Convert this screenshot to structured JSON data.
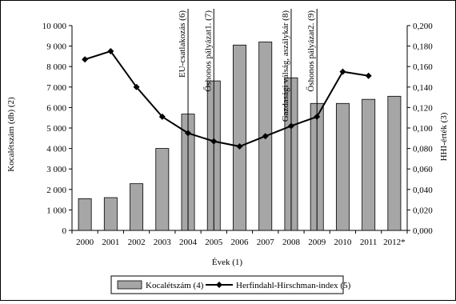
{
  "chart_data": {
    "type": "bar+line",
    "categories": [
      "2000",
      "2001",
      "2002",
      "2003",
      "2004",
      "2005",
      "2006",
      "2007",
      "2008",
      "2009",
      "2010",
      "2011",
      "2012*"
    ],
    "series": [
      {
        "name": "Kocalétszám (4)",
        "type": "bar",
        "axis": "left",
        "values": [
          1550,
          1600,
          2280,
          4000,
          5680,
          7300,
          9050,
          9200,
          7450,
          6200,
          6200,
          6400,
          6550
        ]
      },
      {
        "name": "Herfindahl-Hirschman-index (5)",
        "type": "line",
        "axis": "right",
        "values": [
          0.167,
          0.175,
          0.14,
          0.111,
          0.095,
          0.087,
          0.082,
          0.092,
          0.102,
          0.111,
          0.155,
          0.151,
          null
        ]
      }
    ],
    "y_left": {
      "label": "Kocalétszám (db) (2)",
      "min": 0,
      "max": 10000,
      "ticks": [
        "0",
        "1 000",
        "2 000",
        "3 000",
        "4 000",
        "5 000",
        "6 000",
        "7 000",
        "8 000",
        "9 000",
        "10 000"
      ]
    },
    "y_right": {
      "label": "HHI-érték (3)",
      "min": 0,
      "max": 0.2,
      "ticks": [
        "0,000",
        "0,020",
        "0,040",
        "0,060",
        "0,080",
        "0,100",
        "0,120",
        "0,140",
        "0,160",
        "0,180",
        "0,200"
      ]
    },
    "xlabel": "Évek (1)",
    "events": [
      {
        "label": "EU-csatlakozás (6)",
        "position": 4.5
      },
      {
        "label": "Őshonos pályázat1. (7)",
        "position": 5.5
      },
      {
        "label": "Gazdasági válság, aszálykár (8)",
        "position": 8.5
      },
      {
        "label": "Őshonos pályázat2. (9)",
        "position": 9.5
      }
    ],
    "legend_position": "bottom",
    "colors": {
      "bar_fill": "#a6a6a6",
      "bar_stroke": "#000000",
      "line": "#000000"
    }
  }
}
